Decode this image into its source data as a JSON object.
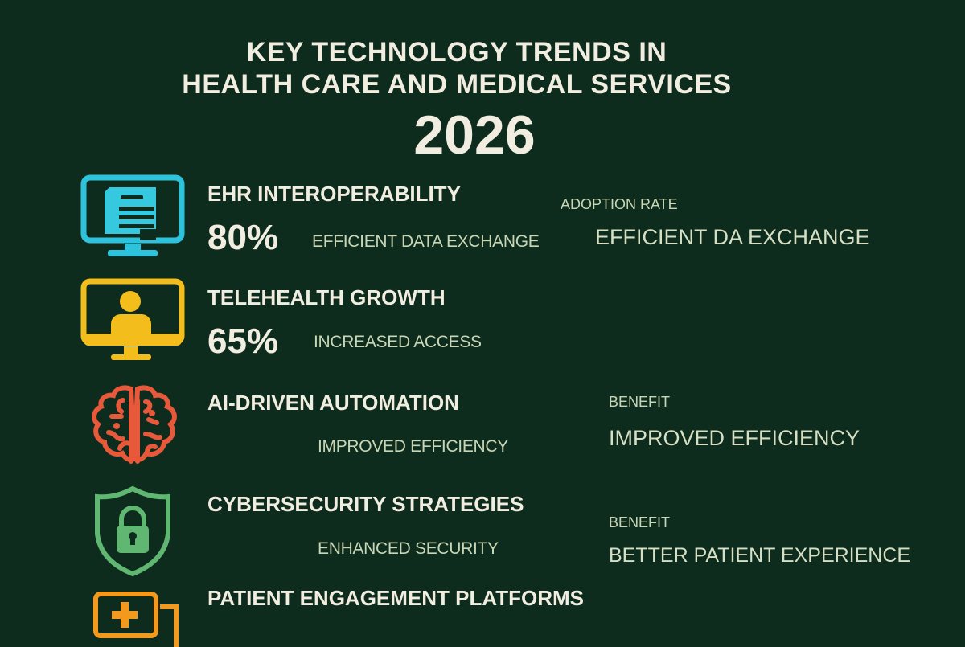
{
  "title": {
    "line1": "KEY TECHNOLOGY TRENDS IN",
    "line2": "HEALTH CARE AND MEDICAL SERVICES",
    "year": "2026"
  },
  "trends": [
    {
      "heading": "EHR INTEROPERABILITY",
      "value": "80%",
      "description": "EFFICIENT DATA EXCHANGE",
      "side_label": "ADOPTION RATE",
      "side_value": "EFFICIENT DA EXCHANGE",
      "icon": "monitor-document-icon",
      "color": "#2ec3dc"
    },
    {
      "heading": "TELEHEALTH GROWTH",
      "value": "65%",
      "description": "INCREASED ACCESS",
      "icon": "monitor-person-icon",
      "color": "#f3bd1c"
    },
    {
      "heading": "AI-DRIVEN AUTOMATION",
      "description": "IMPROVED EFFICIENCY",
      "side_label": "BENEFIT",
      "side_value": "IMPROVED EFFICIENCY",
      "icon": "brain-icon",
      "color": "#e8583a"
    },
    {
      "heading": "CYBERSECURITY STRATEGIES",
      "description": "ENHANCED SECURITY",
      "side_label": "BENEFIT",
      "side_value": "BETTER PATIENT EXPERIENCE",
      "icon": "shield-lock-icon",
      "color": "#5fb771"
    },
    {
      "heading": "PATIENT ENGAGEMENT PLATFORMS",
      "icon": "medical-chat-icon",
      "color": "#f39a1e"
    }
  ]
}
